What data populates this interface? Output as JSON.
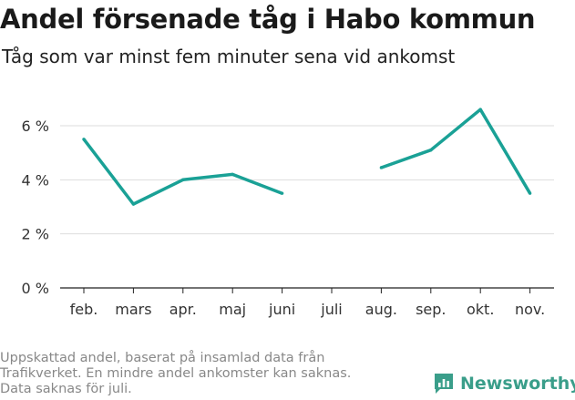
{
  "title": "Andel försenade tåg i Habo kommun",
  "subtitle": "Tåg som var minst fem minuter sena vid ankomst",
  "footnote": [
    "Uppskattad andel, baserat på insamlad data från",
    "Trafikverket. En mindre andel ankomster kan saknas.",
    "Data saknas för juli."
  ],
  "brand": {
    "name": "Newsworthy",
    "icon": "newsworthy-logo-icon",
    "color": "#3a9e8a"
  },
  "chart_data": {
    "type": "line",
    "title": "Andel försenade tåg i Habo kommun",
    "subtitle": "Tåg som var minst fem minuter sena vid ankomst",
    "categories": [
      "feb.",
      "mars",
      "apr.",
      "maj",
      "juni",
      "juli",
      "aug.",
      "sep.",
      "okt.",
      "nov."
    ],
    "series": [
      {
        "values": [
          5.5,
          3.1,
          4.0,
          4.2,
          3.5,
          null,
          4.45,
          5.1,
          6.6,
          3.5
        ],
        "color": "#1aa196"
      }
    ],
    "yticks": [
      0,
      2,
      4,
      6
    ],
    "ytick_labels": [
      "0 %",
      "2 %",
      "4 %",
      "6 %"
    ],
    "ylim": [
      0,
      7
    ],
    "grid": "horizontal",
    "xlabel": "",
    "ylabel": ""
  }
}
